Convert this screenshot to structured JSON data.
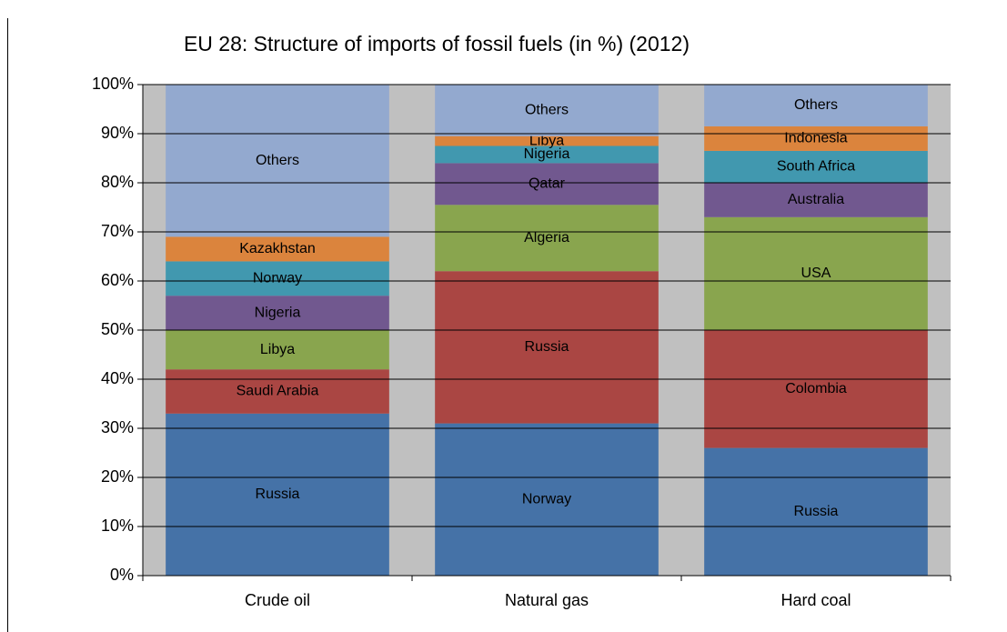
{
  "chart_data": {
    "type": "stacked-bar",
    "title": "EU 28: Structure of imports of fossil fuels (in %) (2012)",
    "categories": [
      "Crude oil",
      "Natural gas",
      "Hard coal"
    ],
    "series": [
      {
        "color": "#4572a7",
        "values": [
          33,
          31,
          26
        ],
        "segment_labels": [
          "Russia",
          "Norway",
          "Russia"
        ]
      },
      {
        "color": "#aa4643",
        "values": [
          9,
          31,
          24
        ],
        "segment_labels": [
          "Saudi Arabia",
          "Russia",
          "Colombia"
        ]
      },
      {
        "color": "#89a54e",
        "values": [
          8,
          13.5,
          23
        ],
        "segment_labels": [
          "Libya",
          "Algeria",
          "USA"
        ]
      },
      {
        "color": "#71588f",
        "values": [
          7,
          8.5,
          7
        ],
        "segment_labels": [
          "Nigeria",
          "Qatar",
          "Australia"
        ]
      },
      {
        "color": "#4198af",
        "values": [
          7,
          3.5,
          6.5
        ],
        "segment_labels": [
          "Norway",
          "Nigeria",
          "South Africa"
        ]
      },
      {
        "color": "#db843d",
        "values": [
          5,
          2,
          5
        ],
        "segment_labels": [
          "Kazakhstan",
          "Libya",
          "Indonesia"
        ]
      },
      {
        "color": "#93a9cf",
        "values": [
          31,
          10.5,
          8.5
        ],
        "segment_labels": [
          "Others",
          "Others",
          "Others"
        ]
      }
    ],
    "ylim": [
      0,
      100
    ],
    "yticks": [
      {
        "value": 0,
        "label": "0%"
      },
      {
        "value": 10,
        "label": "10%"
      },
      {
        "value": 20,
        "label": "20%"
      },
      {
        "value": 30,
        "label": "30%"
      },
      {
        "value": 40,
        "label": "40%"
      },
      {
        "value": 50,
        "label": "50%"
      },
      {
        "value": 60,
        "label": "60%"
      },
      {
        "value": 70,
        "label": "70%"
      },
      {
        "value": 80,
        "label": "80%"
      },
      {
        "value": 90,
        "label": "90%"
      },
      {
        "value": 100,
        "label": "100%"
      }
    ],
    "grid": true
  }
}
